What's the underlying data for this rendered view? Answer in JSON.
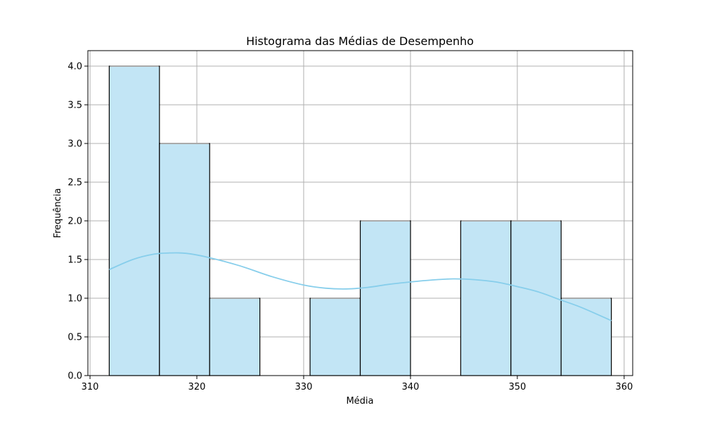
{
  "chart_data": {
    "type": "bar",
    "title": "Histograma das Médias de Desempenho",
    "xlabel": "Média",
    "ylabel": "Frequência",
    "xlim": [
      309.8,
      360.8
    ],
    "ylim": [
      0,
      4.2
    ],
    "xticks": [
      310,
      320,
      330,
      340,
      350,
      360
    ],
    "yticks": [
      0.0,
      0.5,
      1.0,
      1.5,
      2.0,
      2.5,
      3.0,
      3.5,
      4.0
    ],
    "xtick_labels": [
      "310",
      "320",
      "330",
      "340",
      "350",
      "360"
    ],
    "ytick_labels": [
      "0.0",
      "0.5",
      "1.0",
      "1.5",
      "2.0",
      "2.5",
      "3.0",
      "3.5",
      "4.0"
    ],
    "grid": true,
    "bins": [
      {
        "x0": 311.8,
        "x1": 316.5,
        "count": 4
      },
      {
        "x0": 316.5,
        "x1": 321.2,
        "count": 3
      },
      {
        "x0": 321.2,
        "x1": 325.9,
        "count": 1
      },
      {
        "x0": 325.9,
        "x1": 330.6,
        "count": 0
      },
      {
        "x0": 330.6,
        "x1": 335.3,
        "count": 1
      },
      {
        "x0": 335.3,
        "x1": 340.0,
        "count": 2
      },
      {
        "x0": 340.0,
        "x1": 344.7,
        "count": 0
      },
      {
        "x0": 344.7,
        "x1": 349.4,
        "count": 2
      },
      {
        "x0": 349.4,
        "x1": 354.1,
        "count": 2
      },
      {
        "x0": 354.1,
        "x1": 358.8,
        "count": 1
      }
    ],
    "kde": {
      "x": [
        311.8,
        314,
        316,
        317.5,
        319,
        321,
        324,
        327,
        330,
        332,
        334,
        336,
        338,
        340,
        342,
        344,
        346,
        348,
        350,
        352,
        354,
        356,
        358.8
      ],
      "y": [
        1.37,
        1.5,
        1.57,
        1.585,
        1.58,
        1.53,
        1.42,
        1.28,
        1.17,
        1.13,
        1.12,
        1.14,
        1.18,
        1.21,
        1.235,
        1.25,
        1.24,
        1.21,
        1.15,
        1.08,
        0.98,
        0.88,
        0.71
      ]
    },
    "colors": {
      "bar_fill": "#c2e5f5",
      "kde_line": "#87ceeb"
    }
  }
}
